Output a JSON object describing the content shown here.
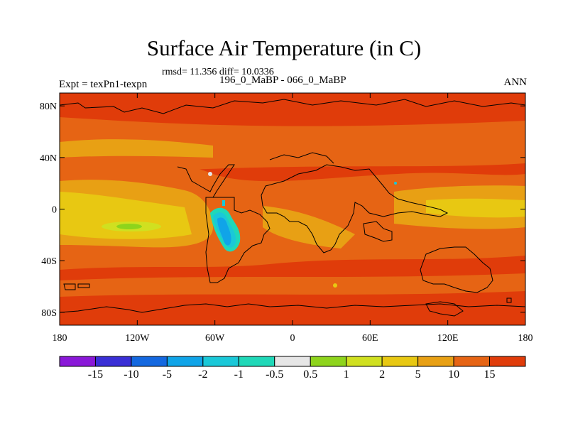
{
  "title": "Surface Air Temperature (in C)",
  "stats": "rmsd= 11.356 diff= 10.0336",
  "subtitle": "196_0_MaBP - 066_0_MaBP",
  "experiment": "Expt = texPn1-texpn",
  "period": "ANN",
  "map": {
    "variable": "Surface Air Temperature",
    "units": "C",
    "projection": "cylindrical equidistant",
    "lon_range": [
      -180,
      180
    ],
    "lat_range": [
      -90,
      90
    ],
    "lat_ticks": [
      {
        "value": 80,
        "label": "80N"
      },
      {
        "value": 40,
        "label": "40N"
      },
      {
        "value": 0,
        "label": "0"
      },
      {
        "value": -40,
        "label": "40S"
      },
      {
        "value": -80,
        "label": "80S"
      }
    ],
    "lon_ticks": [
      {
        "value": -180,
        "label": "180"
      },
      {
        "value": -120,
        "label": "120W"
      },
      {
        "value": -60,
        "label": "60W"
      },
      {
        "value": 0,
        "label": "0"
      },
      {
        "value": 60,
        "label": "60E"
      },
      {
        "value": 120,
        "label": "120E"
      },
      {
        "value": 180,
        "label": "180"
      }
    ]
  },
  "colorbar": {
    "colors": [
      "#8a18d8",
      "#3a2fd6",
      "#1468e0",
      "#10a4e8",
      "#1ac8d8",
      "#20d8b8",
      "#e6e6e6",
      "#8ed41c",
      "#d0e020",
      "#e8c812",
      "#e8a014",
      "#e66414",
      "#e03c0a"
    ],
    "labels": [
      "-15",
      "-10",
      "-5",
      "-2",
      "-1",
      "-0.5",
      "0.5",
      "1",
      "2",
      "5",
      "10",
      "15"
    ]
  }
}
